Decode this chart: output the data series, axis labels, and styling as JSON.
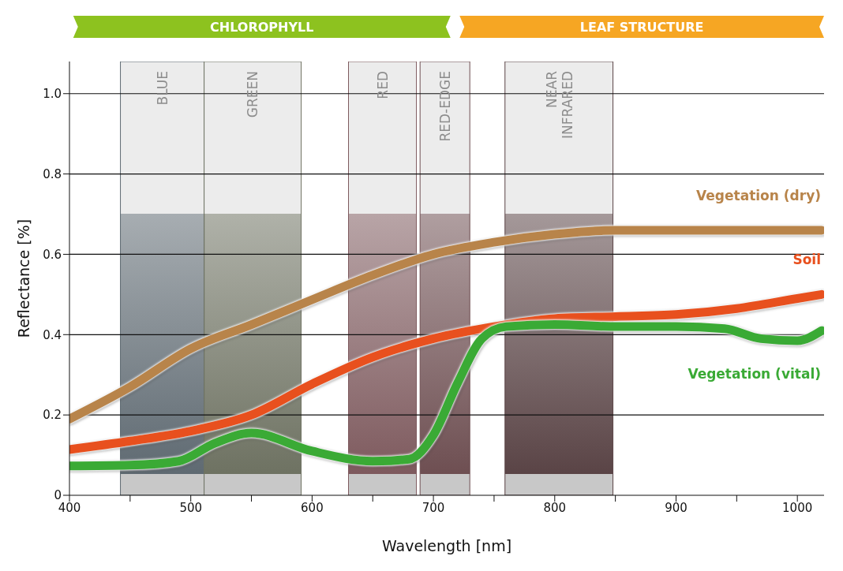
{
  "chart_data": {
    "type": "line",
    "xlabel": "Wavelength [nm]",
    "ylabel": "Reflectance [%]",
    "xlim": [
      400,
      1022
    ],
    "ylim": [
      0,
      1.08
    ],
    "xticks": [
      400,
      {
        "value": 450,
        "label": null
      },
      500,
      {
        "value": 550,
        "label": null
      },
      600,
      {
        "value": 650,
        "label": null
      },
      700,
      {
        "value": 750,
        "label": null
      },
      800,
      {
        "value": 850,
        "label": null
      },
      900,
      {
        "value": 950,
        "label": null
      },
      1000
    ],
    "yticks": [
      0,
      0.2,
      0.4,
      0.6,
      0.8,
      {
        "value": 1,
        "label": "1.0"
      }
    ],
    "grid": "y",
    "legend": false,
    "marker": "none",
    "line_style": "solid",
    "series": [
      {
        "name": "Vegetation (dry)",
        "color": "#b8844a",
        "x": [
          400,
          450,
          500,
          550,
          600,
          650,
          700,
          750,
          800,
          850,
          900,
          950,
          1000,
          1020
        ],
        "values": [
          0.19,
          0.27,
          0.365,
          0.425,
          0.487,
          0.548,
          0.6,
          0.63,
          0.65,
          0.66,
          0.66,
          0.66,
          0.66,
          0.66
        ]
      },
      {
        "name": "Soil",
        "color": "#e8501e",
        "x": [
          400,
          450,
          500,
          550,
          600,
          650,
          700,
          750,
          800,
          850,
          900,
          950,
          1000,
          1020
        ],
        "values": [
          0.114,
          0.135,
          0.16,
          0.2,
          0.277,
          0.344,
          0.39,
          0.42,
          0.44,
          0.445,
          0.45,
          0.465,
          0.49,
          0.5
        ]
      },
      {
        "name": "Vegetation (vital)",
        "color": "#3aaa35",
        "x": [
          400,
          450,
          490,
          520,
          550,
          600,
          650,
          680,
          700,
          720,
          740,
          760,
          800,
          850,
          900,
          940,
          970,
          1000,
          1020
        ],
        "values": [
          0.073,
          0.075,
          0.085,
          0.13,
          0.155,
          0.11,
          0.085,
          0.09,
          0.15,
          0.28,
          0.39,
          0.42,
          0.425,
          0.42,
          0.42,
          0.415,
          0.39,
          0.385,
          0.41
        ]
      }
    ],
    "bands": [
      {
        "axis": "x",
        "from": 442,
        "to": 511,
        "label": "BLUE",
        "color": "#5f6a72"
      },
      {
        "axis": "x",
        "from": 511,
        "to": 591,
        "label": "GREEN",
        "color": "#6e7262"
      },
      {
        "axis": "x",
        "from": 630,
        "to": 686,
        "label": "RED",
        "color": "#7e5a5e"
      },
      {
        "axis": "x",
        "from": 689,
        "to": 730,
        "label": "RED-EDGE",
        "color": "#6e4f52"
      },
      {
        "axis": "x",
        "from": 759,
        "to": 848,
        "label": "NEAR INFRARED",
        "color": "#5a4446"
      }
    ],
    "annotations": [
      "CHLOROPHYLL",
      "LEAF STRUCTURE"
    ]
  }
}
